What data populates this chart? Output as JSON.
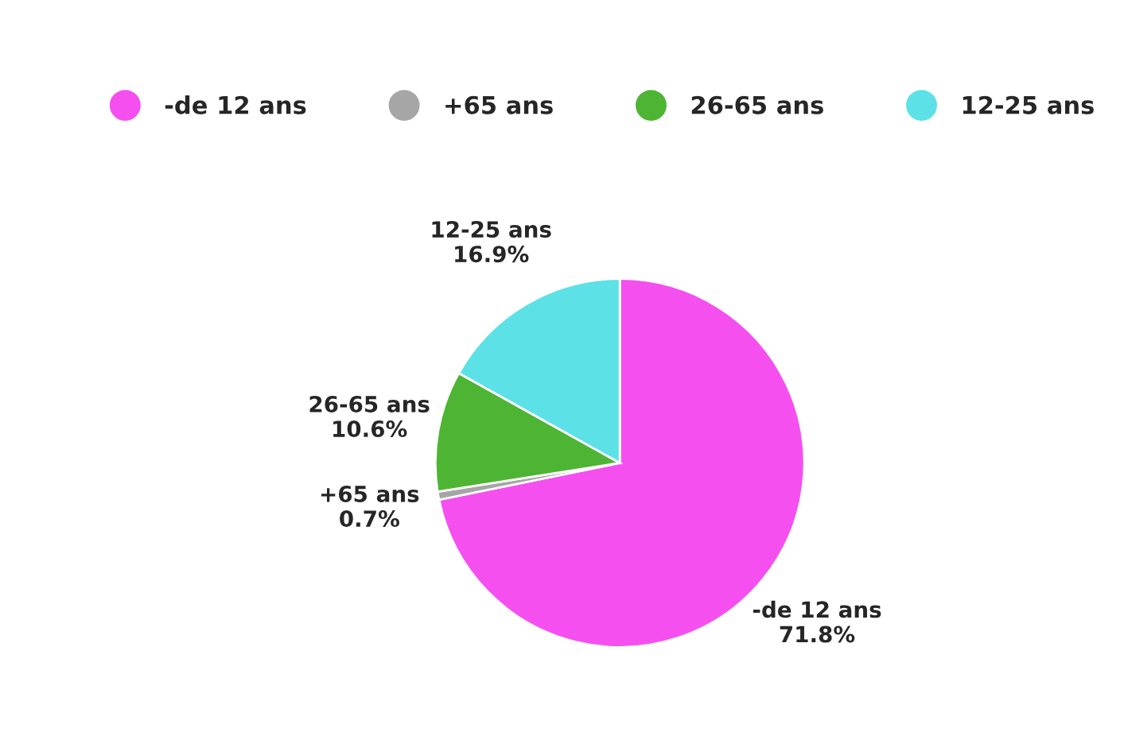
{
  "chart_data": {
    "type": "pie",
    "categories": [
      "-de 12 ans",
      "+65 ans",
      "26-65 ans",
      "12-25 ans"
    ],
    "values": [
      71.8,
      0.7,
      10.6,
      16.9
    ],
    "value_labels": [
      "71.8%",
      "0.7%",
      "10.6%",
      "16.9%"
    ],
    "colors": [
      "#f54ff0",
      "#a6a6a6",
      "#4db533",
      "#5ce1e6"
    ],
    "legend": "top"
  }
}
